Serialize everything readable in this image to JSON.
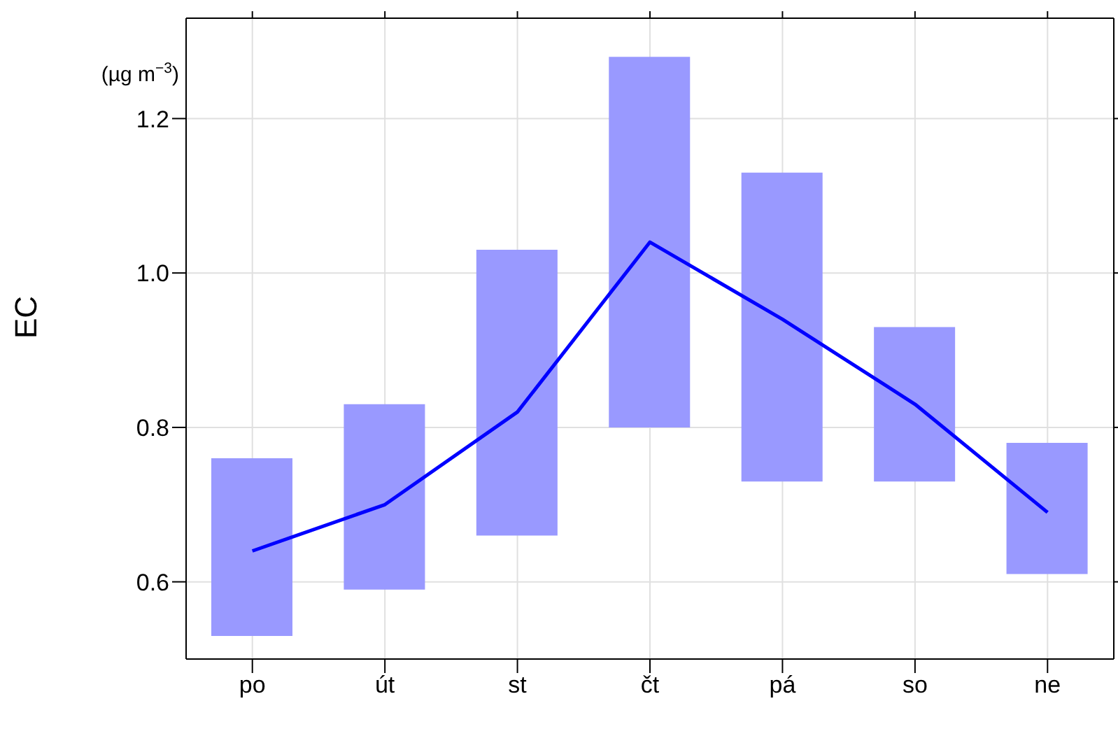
{
  "chart_data": {
    "type": "bar",
    "ylabel": "EC",
    "annotations": [
      "(µg m$^{−3}$)"
    ],
    "categories": [
      "po",
      "út",
      "st",
      "čt",
      "pá",
      "so",
      "ne"
    ],
    "series": [
      {
        "color": "#9999ff",
        "values": [
          0.23,
          0.24,
          0.37,
          0.48,
          0.4,
          0.2,
          0.17
        ],
        "base": [
          0.53,
          0.59,
          0.66,
          0.8,
          0.73,
          0.73,
          0.61
        ]
      },
      {
        "type": "line",
        "color": "#0000ff",
        "values": [
          0.64,
          0.7,
          0.82,
          1.04,
          0.94,
          0.83,
          0.69
        ]
      }
    ],
    "ylim": [
      0.5,
      1.33
    ],
    "yticks": [
      0.6,
      0.8,
      {
        "value": 1.0,
        "label": "1.0"
      },
      1.2
    ],
    "grid": true,
    "marker": "none"
  }
}
